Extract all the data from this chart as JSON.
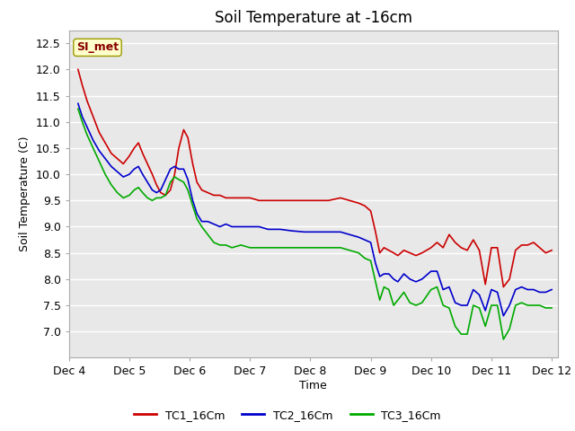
{
  "title": "Soil Temperature at -16cm",
  "xlabel": "Time",
  "ylabel": "Soil Temperature (C)",
  "ylim": [
    6.5,
    12.75
  ],
  "yticks": [
    7.0,
    7.5,
    8.0,
    8.5,
    9.0,
    9.5,
    10.0,
    10.5,
    11.0,
    11.5,
    12.0,
    12.5
  ],
  "plot_bg_color": "#e8e8e8",
  "fig_bg_color": "#ffffff",
  "grid_color": "#ffffff",
  "series": {
    "TC1_16Cm": {
      "color": "#cc0000",
      "x": [
        4.15,
        4.22,
        4.3,
        4.4,
        4.5,
        4.6,
        4.7,
        4.8,
        4.9,
        5.0,
        5.08,
        5.15,
        5.22,
        5.3,
        5.38,
        5.45,
        5.52,
        5.6,
        5.68,
        5.75,
        5.82,
        5.9,
        5.97,
        6.05,
        6.12,
        6.2,
        6.3,
        6.4,
        6.5,
        6.6,
        6.7,
        6.85,
        7.0,
        7.15,
        7.3,
        7.5,
        7.7,
        7.9,
        8.0,
        8.15,
        8.3,
        8.5,
        8.65,
        8.8,
        8.9,
        9.0,
        9.08,
        9.15,
        9.22,
        9.3,
        9.38,
        9.45,
        9.55,
        9.65,
        9.75,
        9.85,
        10.0,
        10.1,
        10.2,
        10.3,
        10.4,
        10.5,
        10.6,
        10.7,
        10.8,
        10.9,
        11.0,
        11.1,
        11.2,
        11.3,
        11.4,
        11.5,
        11.6,
        11.7,
        11.8,
        11.9,
        12.0
      ],
      "y": [
        12.0,
        11.7,
        11.4,
        11.1,
        10.8,
        10.6,
        10.4,
        10.3,
        10.2,
        10.35,
        10.5,
        10.6,
        10.4,
        10.2,
        10.0,
        9.8,
        9.65,
        9.6,
        9.7,
        10.0,
        10.5,
        10.85,
        10.7,
        10.2,
        9.85,
        9.7,
        9.65,
        9.6,
        9.6,
        9.55,
        9.55,
        9.55,
        9.55,
        9.5,
        9.5,
        9.5,
        9.5,
        9.5,
        9.5,
        9.5,
        9.5,
        9.55,
        9.5,
        9.45,
        9.4,
        9.3,
        8.9,
        8.5,
        8.6,
        8.55,
        8.5,
        8.45,
        8.55,
        8.5,
        8.45,
        8.5,
        8.6,
        8.7,
        8.6,
        8.85,
        8.7,
        8.6,
        8.55,
        8.75,
        8.55,
        7.9,
        8.6,
        8.6,
        7.85,
        8.0,
        8.55,
        8.65,
        8.65,
        8.7,
        8.6,
        8.5,
        8.55
      ]
    },
    "TC2_16Cm": {
      "color": "#0000cc",
      "x": [
        4.15,
        4.22,
        4.3,
        4.4,
        4.5,
        4.6,
        4.7,
        4.8,
        4.9,
        5.0,
        5.08,
        5.15,
        5.22,
        5.3,
        5.38,
        5.45,
        5.52,
        5.6,
        5.68,
        5.75,
        5.82,
        5.9,
        5.97,
        6.05,
        6.12,
        6.2,
        6.3,
        6.4,
        6.5,
        6.6,
        6.7,
        6.85,
        7.0,
        7.15,
        7.3,
        7.5,
        7.7,
        7.9,
        8.0,
        8.15,
        8.3,
        8.5,
        8.65,
        8.8,
        8.9,
        9.0,
        9.08,
        9.15,
        9.22,
        9.3,
        9.38,
        9.45,
        9.55,
        9.65,
        9.75,
        9.85,
        10.0,
        10.1,
        10.2,
        10.3,
        10.4,
        10.5,
        10.6,
        10.7,
        10.8,
        10.9,
        11.0,
        11.1,
        11.2,
        11.3,
        11.4,
        11.5,
        11.6,
        11.7,
        11.8,
        11.9,
        12.0
      ],
      "y": [
        11.35,
        11.1,
        10.9,
        10.65,
        10.45,
        10.3,
        10.15,
        10.05,
        9.95,
        10.0,
        10.1,
        10.15,
        10.0,
        9.85,
        9.7,
        9.65,
        9.7,
        9.9,
        10.1,
        10.15,
        10.1,
        10.1,
        9.9,
        9.5,
        9.25,
        9.1,
        9.1,
        9.05,
        9.0,
        9.05,
        9.0,
        9.0,
        9.0,
        9.0,
        8.95,
        8.95,
        8.92,
        8.9,
        8.9,
        8.9,
        8.9,
        8.9,
        8.85,
        8.8,
        8.75,
        8.7,
        8.3,
        8.05,
        8.1,
        8.1,
        8.0,
        7.95,
        8.1,
        8.0,
        7.95,
        8.0,
        8.15,
        8.15,
        7.8,
        7.85,
        7.55,
        7.5,
        7.5,
        7.8,
        7.7,
        7.4,
        7.8,
        7.75,
        7.3,
        7.5,
        7.8,
        7.85,
        7.8,
        7.8,
        7.75,
        7.75,
        7.8
      ]
    },
    "TC3_16Cm": {
      "color": "#00aa00",
      "x": [
        4.15,
        4.22,
        4.3,
        4.4,
        4.5,
        4.6,
        4.7,
        4.8,
        4.9,
        5.0,
        5.08,
        5.15,
        5.22,
        5.3,
        5.38,
        5.45,
        5.52,
        5.6,
        5.68,
        5.75,
        5.82,
        5.9,
        5.97,
        6.05,
        6.12,
        6.2,
        6.3,
        6.4,
        6.5,
        6.6,
        6.7,
        6.85,
        7.0,
        7.15,
        7.3,
        7.5,
        7.7,
        7.9,
        8.0,
        8.15,
        8.3,
        8.5,
        8.65,
        8.8,
        8.9,
        9.0,
        9.08,
        9.15,
        9.22,
        9.3,
        9.38,
        9.45,
        9.55,
        9.65,
        9.75,
        9.85,
        10.0,
        10.1,
        10.2,
        10.3,
        10.4,
        10.5,
        10.6,
        10.7,
        10.8,
        10.9,
        11.0,
        11.1,
        11.2,
        11.3,
        11.4,
        11.5,
        11.6,
        11.7,
        11.8,
        11.9,
        12.0
      ],
      "y": [
        11.25,
        11.0,
        10.75,
        10.5,
        10.25,
        10.0,
        9.8,
        9.65,
        9.55,
        9.6,
        9.7,
        9.75,
        9.65,
        9.55,
        9.5,
        9.55,
        9.55,
        9.6,
        9.85,
        9.95,
        9.9,
        9.85,
        9.7,
        9.4,
        9.15,
        9.0,
        8.85,
        8.7,
        8.65,
        8.65,
        8.6,
        8.65,
        8.6,
        8.6,
        8.6,
        8.6,
        8.6,
        8.6,
        8.6,
        8.6,
        8.6,
        8.6,
        8.55,
        8.5,
        8.4,
        8.35,
        7.95,
        7.6,
        7.85,
        7.8,
        7.5,
        7.6,
        7.75,
        7.55,
        7.5,
        7.55,
        7.8,
        7.85,
        7.5,
        7.45,
        7.1,
        6.95,
        6.95,
        7.5,
        7.45,
        7.1,
        7.5,
        7.5,
        6.85,
        7.05,
        7.5,
        7.55,
        7.5,
        7.5,
        7.5,
        7.45,
        7.45
      ]
    }
  },
  "xtick_positions": [
    4,
    5,
    6,
    7,
    8,
    9,
    10,
    11,
    12
  ],
  "xtick_labels": [
    "Dec 4",
    "Dec 5",
    "Dec 6",
    "Dec 7",
    "Dec 8",
    "Dec 9",
    "Dec 10",
    "Dec 11",
    "Dec 12"
  ],
  "xlim": [
    4.0,
    12.1
  ],
  "title_fontsize": 12,
  "axis_label_fontsize": 9,
  "tick_fontsize": 9,
  "legend_fontsize": 9,
  "watermark_text": "SI_met",
  "watermark_bg": "#ffffcc",
  "watermark_border": "#999900",
  "watermark_text_color": "#880000"
}
